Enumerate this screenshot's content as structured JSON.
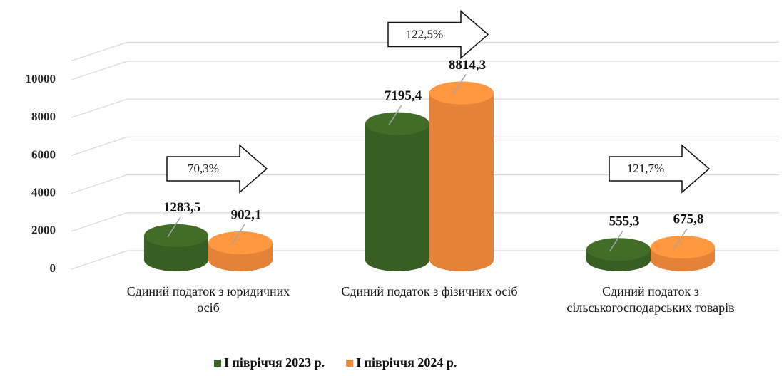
{
  "chart_data": {
    "type": "bar3d",
    "categories": [
      "Єдиний податок з юридичних осіб",
      "Єдиний податок з фізичних осіб",
      "Єдиний податок з сільськогосподарських товарів"
    ],
    "series": [
      {
        "name": "І півріччя 2023 р.",
        "color": "#3b6325",
        "values": [
          1283.5,
          7195.4,
          555.3
        ],
        "value_labels": [
          "1283,5",
          "7195,4",
          "555,3"
        ]
      },
      {
        "name": "І півріччя 2024 р.",
        "color": "#f08a3a",
        "values": [
          902.1,
          8814.3,
          675.8
        ],
        "value_labels": [
          "902,1",
          "8814,3",
          "675,8"
        ]
      }
    ],
    "annotations": [
      "70,3%",
      "122,5%",
      "121,7%"
    ],
    "ylim": [
      0,
      11000
    ],
    "yticks": [
      0,
      2000,
      4000,
      6000,
      8000,
      10000
    ],
    "grid": true,
    "legend": "bottom"
  }
}
